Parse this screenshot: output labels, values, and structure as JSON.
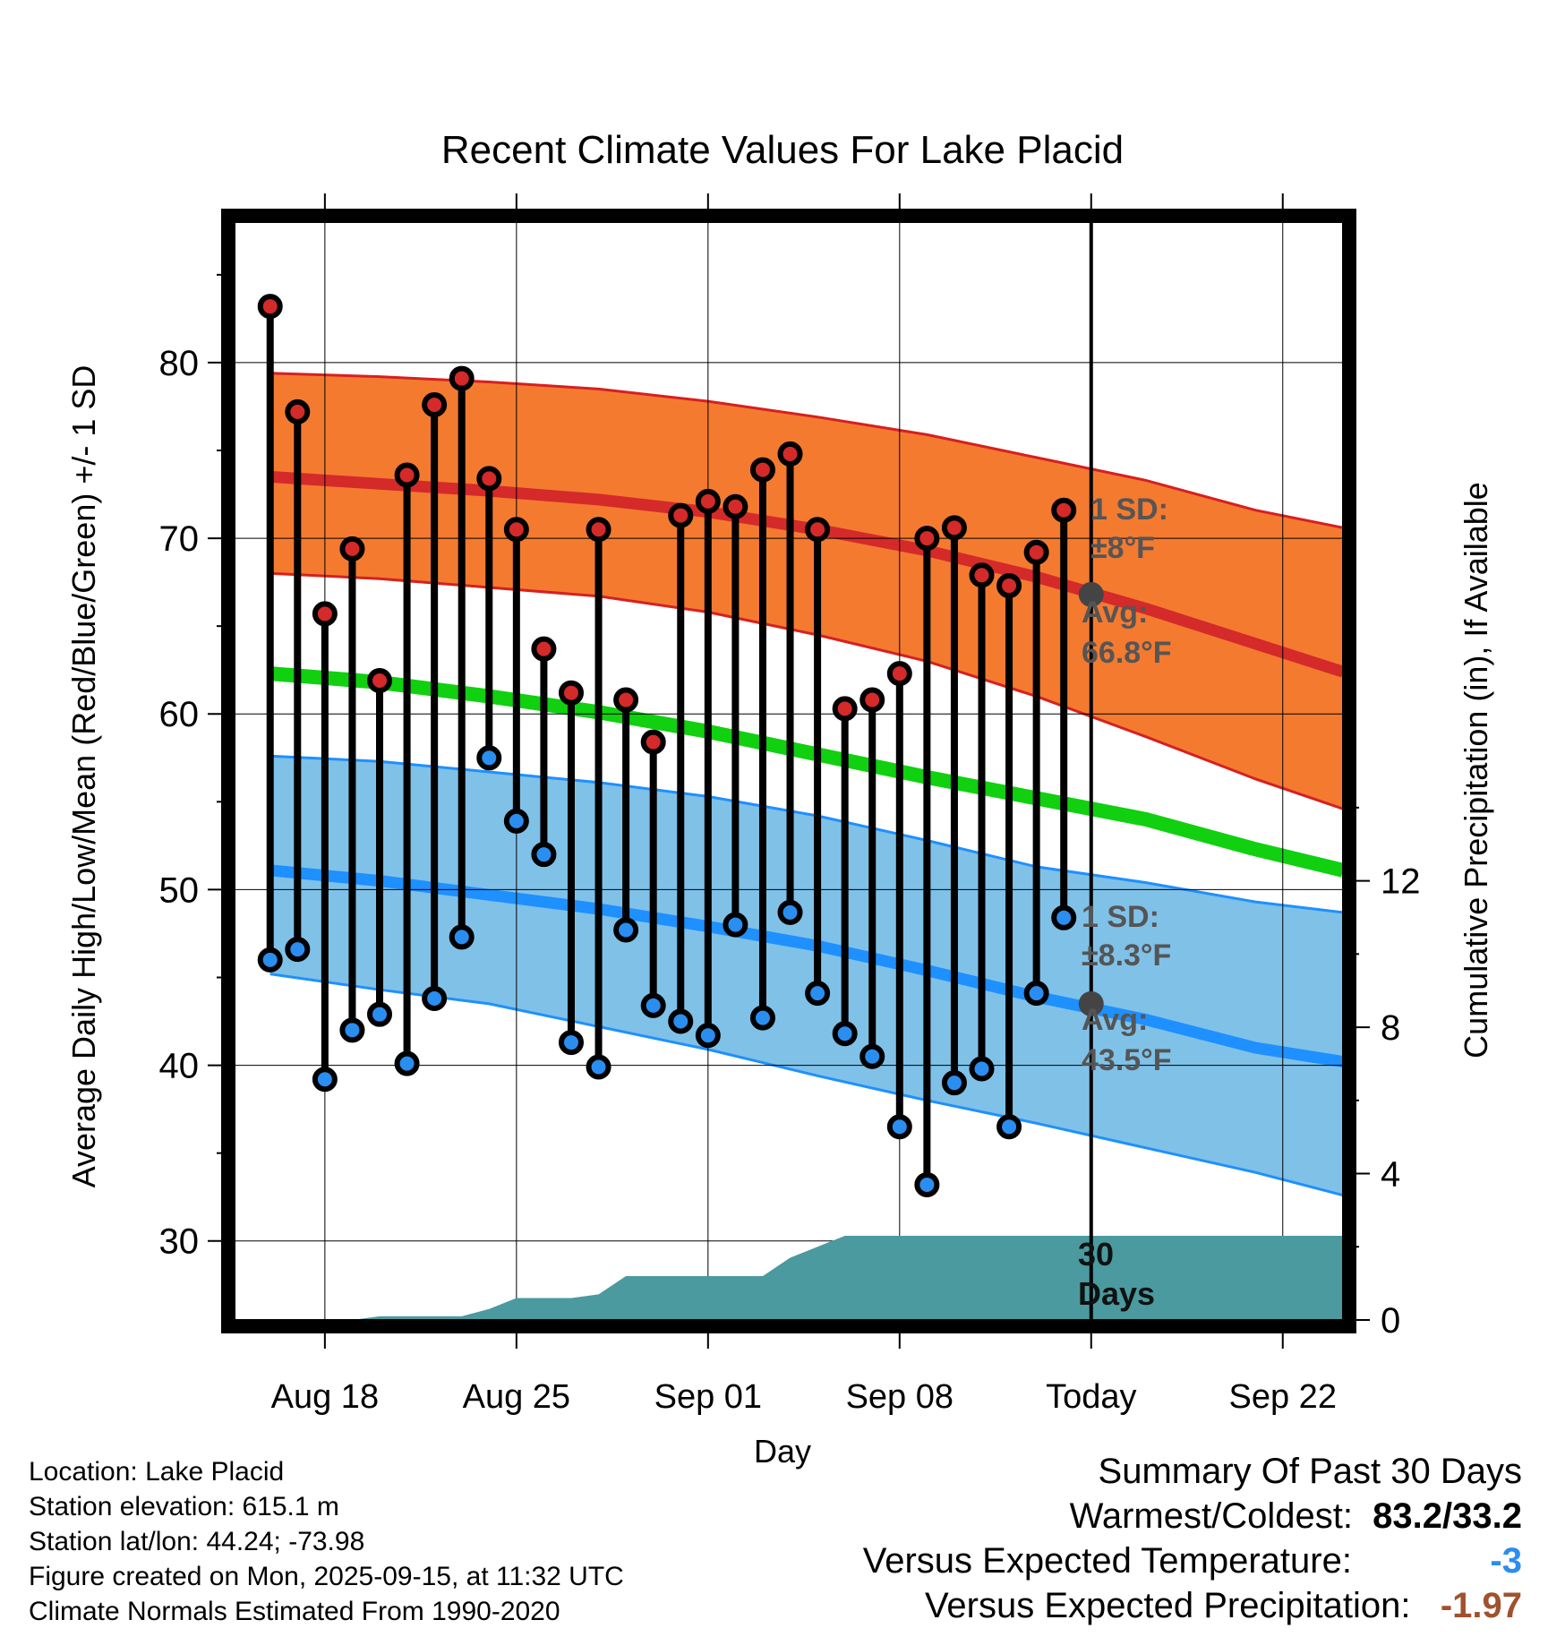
{
  "chart_data": {
    "type": "line",
    "title": "Recent Climate Values For Lake Placid",
    "xlabel": "Day",
    "ylabel": "Average Daily High/Low/Mean (Red/Blue/Green) +/- 1 SD",
    "y2label": "Cumulative Precipitation (in), If Available",
    "ylim": [
      25.5,
      88
    ],
    "y2lim": [
      0,
      30
    ],
    "yticks": [
      30,
      40,
      50,
      60,
      70,
      80
    ],
    "y2ticks": [
      0,
      4,
      8,
      12
    ],
    "xlim": [
      -3.3,
      37.2
    ],
    "x_ticks": [
      {
        "day": 0,
        "label": "Aug 18"
      },
      {
        "day": 7,
        "label": "Aug 25"
      },
      {
        "day": 14,
        "label": "Sep 01"
      },
      {
        "day": 21,
        "label": "Sep 08"
      },
      {
        "day": 28,
        "label": "Today"
      },
      {
        "day": 35,
        "label": "Sep 22"
      }
    ],
    "today_day": 28,
    "observed": {
      "days": [
        -2,
        -1,
        0,
        1,
        2,
        3,
        4,
        5,
        6,
        7,
        8,
        9,
        10,
        11,
        12,
        13,
        14,
        15,
        16,
        17,
        18,
        19,
        20,
        21,
        22,
        23,
        24,
        25,
        26,
        27
      ],
      "highs": [
        83.2,
        77.2,
        65.7,
        69.4,
        61.9,
        73.6,
        77.6,
        79.1,
        73.4,
        70.5,
        63.7,
        61.2,
        70.5,
        60.8,
        58.4,
        71.3,
        72.1,
        71.8,
        73.9,
        74.8,
        70.5,
        60.3,
        60.8,
        62.3,
        70.0,
        70.6,
        67.9,
        67.3,
        69.2,
        71.6
      ],
      "lows": [
        46.0,
        46.6,
        39.2,
        42.0,
        42.9,
        40.1,
        43.8,
        47.3,
        57.5,
        53.9,
        52.0,
        41.3,
        39.9,
        47.7,
        43.4,
        42.5,
        41.7,
        48.0,
        42.7,
        48.7,
        44.1,
        41.8,
        40.5,
        36.5,
        33.2,
        39.0,
        39.8,
        36.5,
        44.1,
        48.4
      ]
    },
    "normals": {
      "days": [
        -2,
        2,
        6,
        10,
        14,
        18,
        22,
        26,
        30,
        34,
        37.2
      ],
      "avg_high": [
        73.5,
        73.1,
        72.7,
        72.2,
        71.5,
        70.5,
        69.3,
        67.8,
        66.0,
        64.0,
        62.4
      ],
      "high_sd_upper": [
        79.4,
        79.2,
        78.9,
        78.5,
        77.8,
        76.9,
        75.9,
        74.6,
        73.3,
        71.6,
        70.6
      ],
      "high_sd_lower": [
        68.0,
        67.7,
        67.2,
        66.7,
        65.8,
        64.5,
        63.0,
        61.0,
        58.7,
        56.3,
        54.6
      ],
      "avg_mean": [
        62.3,
        61.8,
        61.0,
        60.1,
        59.0,
        57.7,
        56.4,
        55.2,
        54.0,
        52.3,
        51.1
      ],
      "avg_low": [
        51.1,
        50.5,
        49.7,
        48.9,
        47.9,
        46.8,
        45.4,
        43.9,
        42.6,
        41.0,
        40.2
      ],
      "low_sd_upper": [
        57.6,
        57.3,
        56.7,
        56.1,
        55.3,
        54.2,
        52.8,
        51.3,
        50.4,
        49.3,
        48.7
      ],
      "low_sd_lower": [
        45.2,
        44.3,
        43.5,
        42.2,
        40.9,
        39.4,
        38.0,
        36.7,
        35.3,
        33.9,
        32.6
      ]
    },
    "precipitation": {
      "days": [
        -2,
        1,
        2,
        3,
        4,
        5,
        6,
        7,
        8,
        9,
        10,
        11,
        12,
        13,
        14,
        15,
        16,
        17,
        18,
        19,
        20,
        21,
        22,
        23,
        24,
        25,
        26,
        27,
        28,
        29,
        30,
        31,
        32,
        33,
        34,
        35,
        36,
        37.2
      ],
      "cumulative": [
        0,
        0,
        0.1,
        0.1,
        0.1,
        0.1,
        0.3,
        0.6,
        0.6,
        0.6,
        0.7,
        1.2,
        1.2,
        1.2,
        1.2,
        1.2,
        1.2,
        1.7,
        2.0,
        2.3,
        2.3,
        2.3,
        2.3,
        2.3,
        2.3,
        2.3,
        2.3,
        2.3,
        2.3,
        2.3,
        2.3,
        2.3,
        2.3,
        2.3,
        2.3,
        2.3,
        2.3,
        2.3
      ]
    },
    "annotations": {
      "high_sd_line1": "1 SD:",
      "high_sd_line2": "±8°F",
      "high_avg_line1": "Avg:",
      "high_avg_line2": "66.8°F",
      "low_sd_line1": "1 SD:",
      "low_sd_line2": "±8.3°F",
      "low_avg_line1": "Avg:",
      "low_avg_line2": "43.5°F",
      "days_line1": "30",
      "days_line2": "Days"
    },
    "today_avg_high": 66.8,
    "today_avg_low": 43.5
  },
  "footer": {
    "location": "Location: Lake Placid",
    "elevation": "Station elevation: 615.1 m",
    "latlon": "Station lat/lon: 44.24; -73.98",
    "created": "Figure created on Mon, 2025-09-15, at 11:32 UTC",
    "normals": "Climate Normals Estimated From 1990-2020"
  },
  "summary": {
    "title": "Summary Of Past 30 Days",
    "warm_cold_label": "Warmest/Coldest:",
    "warm_cold_value": "83.2/33.2",
    "temp_label": "Versus Expected Temperature:",
    "temp_value": "-3",
    "precip_label": "Versus Expected Precipitation:",
    "precip_value": "-1.97"
  },
  "colors": {
    "high_band": "#f47a30",
    "high_band_edge": "#d62020",
    "avg_high_line": "#d42a2a",
    "low_band": "#80c1e8",
    "low_band_edge": "#1e90ff",
    "avg_low_line": "#1e90ff",
    "mean_line": "#10d010",
    "precip_fill": "#4a9aa0",
    "high_dot": "#d42a2a",
    "low_dot": "#2a8ef0",
    "today_marker": "#444444",
    "temp_value": "#2a8ef0",
    "precip_value": "#a0522d"
  }
}
